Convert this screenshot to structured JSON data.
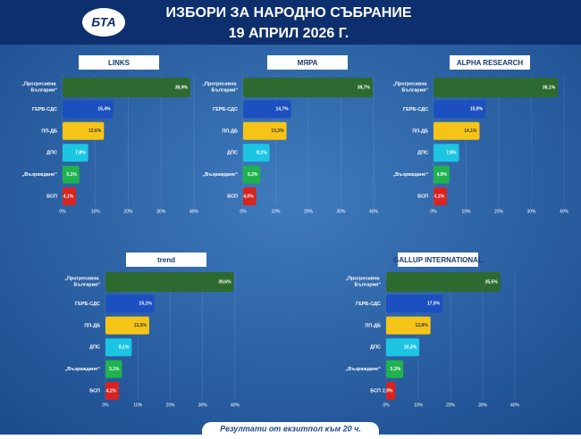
{
  "header": {
    "logo": "БТА",
    "title": "ИЗБОРИ ЗА НАРОДНО СЪБРАНИЕ",
    "subtitle": "19 АПРИЛ 2026 Г."
  },
  "footer": "Резултати от екзитпол към 20 ч.",
  "chart_data": [
    {
      "type": "hbar",
      "title": "LINKS",
      "categories": [
        "„Прогресивна България“",
        "ГЕРБ-СДС",
        "ПП-ДБ",
        "ДПС",
        "„Възраждане“",
        "БСП"
      ],
      "values": [
        38.9,
        15.4,
        12.6,
        7.8,
        5.1,
        4.1
      ],
      "value_labels": [
        "38,9%",
        "15,4%",
        "12,6%",
        "7,8%",
        "5,1%",
        "4,1%"
      ],
      "colors": [
        "#2d6a2f",
        "#1c4fc0",
        "#f6c417",
        "#1cc6e3",
        "#1fb24e",
        "#d8231f"
      ],
      "xlim": [
        0,
        40
      ],
      "xticks": [
        {
          "value": 0,
          "label": "0%"
        },
        {
          "value": 10,
          "label": "10%"
        },
        {
          "value": 20,
          "label": "20%"
        },
        {
          "value": 30,
          "label": "30%"
        },
        {
          "value": 40,
          "label": "40%"
        }
      ],
      "grid": true
    },
    {
      "type": "hbar",
      "title": "МЯРА",
      "categories": [
        "„Прогресивна България“",
        "ГЕРБ-СДС",
        "ПП-ДБ",
        "ДПС",
        "„Възраждане“",
        "БСП"
      ],
      "values": [
        39.7,
        14.7,
        13.3,
        8.1,
        5.3,
        4.0
      ],
      "value_labels": [
        "39,7%",
        "14,7%",
        "13,3%",
        "8,1%",
        "5,3%",
        "4,0%"
      ],
      "colors": [
        "#2d6a2f",
        "#1c4fc0",
        "#f6c417",
        "#1cc6e3",
        "#1fb24e",
        "#d8231f"
      ],
      "xlim": [
        0,
        40
      ],
      "xticks": [
        {
          "value": 0,
          "label": "0%"
        },
        {
          "value": 10,
          "label": "10%"
        },
        {
          "value": 20,
          "label": "20%"
        },
        {
          "value": 30,
          "label": "30%"
        },
        {
          "value": 40,
          "label": "40%"
        }
      ],
      "grid": true
    },
    {
      "type": "hbar",
      "title": "ALPHA RESEARCH",
      "categories": [
        "„Прогресивна България“",
        "ГЕРБ-СДС",
        "ПП-ДБ",
        "ДПС",
        "„Възраждане“",
        "БСП"
      ],
      "values": [
        38.1,
        15.9,
        14.1,
        7.8,
        4.9,
        4.1
      ],
      "value_labels": [
        "38,1%",
        "15,9%",
        "14,1%",
        "7,8%",
        "4,9%",
        "4,1%"
      ],
      "colors": [
        "#2d6a2f",
        "#1c4fc0",
        "#f6c417",
        "#1cc6e3",
        "#1fb24e",
        "#d8231f"
      ],
      "xlim": [
        0,
        40
      ],
      "xticks": [
        {
          "value": 0,
          "label": "0%"
        },
        {
          "value": 10,
          "label": "10%"
        },
        {
          "value": 20,
          "label": "20%"
        },
        {
          "value": 30,
          "label": "30%"
        },
        {
          "value": 40,
          "label": "40%"
        }
      ],
      "grid": true
    },
    {
      "type": "hbar",
      "title": "trend",
      "categories": [
        "„Прогресивна България“",
        "ГЕРБ-СДС",
        "ПП-ДБ",
        "ДПС",
        "„Възраждане“",
        "БСП"
      ],
      "values": [
        39.6,
        15.1,
        13.5,
        8.1,
        5.1,
        4.1
      ],
      "value_labels": [
        "39,6%",
        "15,1%",
        "13,5%",
        "8,1%",
        "5,1%",
        "4,1%"
      ],
      "colors": [
        "#2d6a2f",
        "#1c4fc0",
        "#f6c417",
        "#1cc6e3",
        "#1fb24e",
        "#d8231f"
      ],
      "xlim": [
        0,
        40
      ],
      "xticks": [
        {
          "value": 0,
          "label": "0%"
        },
        {
          "value": 10,
          "label": "10%"
        },
        {
          "value": 20,
          "label": "20%"
        },
        {
          "value": 30,
          "label": "30%"
        },
        {
          "value": 40,
          "label": "40%"
        }
      ],
      "grid": true
    },
    {
      "type": "hbar",
      "title": "GALLUP INTERNATIONAL",
      "categories": [
        "„Прогресивна България“",
        "ГЕРБ-СДС",
        "ПП-ДБ",
        "ДПС",
        "„Възраждане“",
        "БСП"
      ],
      "values": [
        35.5,
        17.5,
        13.8,
        10.3,
        5.3,
        2.9
      ],
      "value_labels": [
        "35,5%",
        "17,5%",
        "13,8%",
        "10,3%",
        "5,3%",
        "2,9%"
      ],
      "colors": [
        "#2d6a2f",
        "#1c4fc0",
        "#f6c417",
        "#1cc6e3",
        "#1fb24e",
        "#d8231f"
      ],
      "xlim": [
        0,
        40
      ],
      "xticks": [
        {
          "value": 0,
          "label": "0%"
        },
        {
          "value": 10,
          "label": "10%"
        },
        {
          "value": 20,
          "label": "20%"
        },
        {
          "value": 30,
          "label": "30%"
        },
        {
          "value": 40,
          "label": "40%"
        }
      ],
      "grid": true
    }
  ]
}
